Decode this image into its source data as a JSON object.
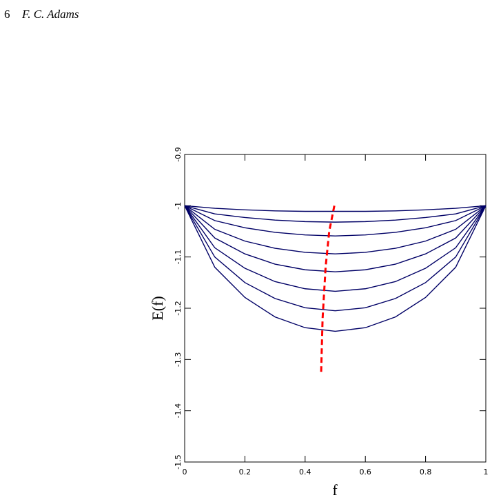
{
  "header": {
    "page": "6",
    "author": "F. C. Adams"
  },
  "chart_data": {
    "type": "line",
    "xlabel": "f",
    "ylabel": "E(f)",
    "xlim": [
      0,
      1
    ],
    "ylim": [
      -1.5,
      -0.9
    ],
    "xticks": [
      0,
      0.2,
      0.4,
      0.6,
      0.8,
      1
    ],
    "yticks": [
      -1.5,
      -1.4,
      -1.3,
      -1.2,
      -1.1,
      -1,
      -0.9
    ],
    "x": [
      0,
      0.1,
      0.2,
      0.3,
      0.4,
      0.5,
      0.6,
      0.7,
      0.8,
      0.9,
      1
    ],
    "series": [
      {
        "color": "#000066",
        "values": [
          -1,
          -1.005,
          -1.008,
          -1.01,
          -1.011,
          -1.011,
          -1.011,
          -1.01,
          -1.008,
          -1.005,
          -1
        ]
      },
      {
        "color": "#000066",
        "values": [
          -1,
          -1.016,
          -1.023,
          -1.028,
          -1.031,
          -1.032,
          -1.031,
          -1.028,
          -1.023,
          -1.016,
          -1
        ]
      },
      {
        "color": "#000066",
        "values": [
          -1,
          -1.029,
          -1.043,
          -1.052,
          -1.057,
          -1.059,
          -1.057,
          -1.052,
          -1.043,
          -1.029,
          -1
        ]
      },
      {
        "color": "#000066",
        "values": [
          -1,
          -1.046,
          -1.069,
          -1.083,
          -1.091,
          -1.094,
          -1.091,
          -1.083,
          -1.069,
          -1.046,
          -1
        ]
      },
      {
        "color": "#000066",
        "values": [
          -1,
          -1.063,
          -1.094,
          -1.114,
          -1.125,
          -1.129,
          -1.125,
          -1.114,
          -1.094,
          -1.063,
          -1
        ]
      },
      {
        "color": "#000066",
        "values": [
          -1,
          -1.082,
          -1.122,
          -1.148,
          -1.162,
          -1.167,
          -1.162,
          -1.148,
          -1.122,
          -1.082,
          -1
        ]
      },
      {
        "color": "#000066",
        "values": [
          -1,
          -1.1,
          -1.15,
          -1.181,
          -1.199,
          -1.205,
          -1.199,
          -1.181,
          -1.15,
          -1.1,
          -1
        ]
      },
      {
        "color": "#000066",
        "values": [
          -1,
          -1.12,
          -1.179,
          -1.217,
          -1.238,
          -1.245,
          -1.238,
          -1.217,
          -1.179,
          -1.12,
          -1
        ]
      },
      {
        "color": "#ff0000",
        "dashed": true,
        "x": [
          0.497,
          0.48,
          0.468,
          0.458,
          0.453
        ],
        "values": [
          -1,
          -1.05,
          -1.12,
          -1.22,
          -1.33
        ]
      }
    ]
  }
}
